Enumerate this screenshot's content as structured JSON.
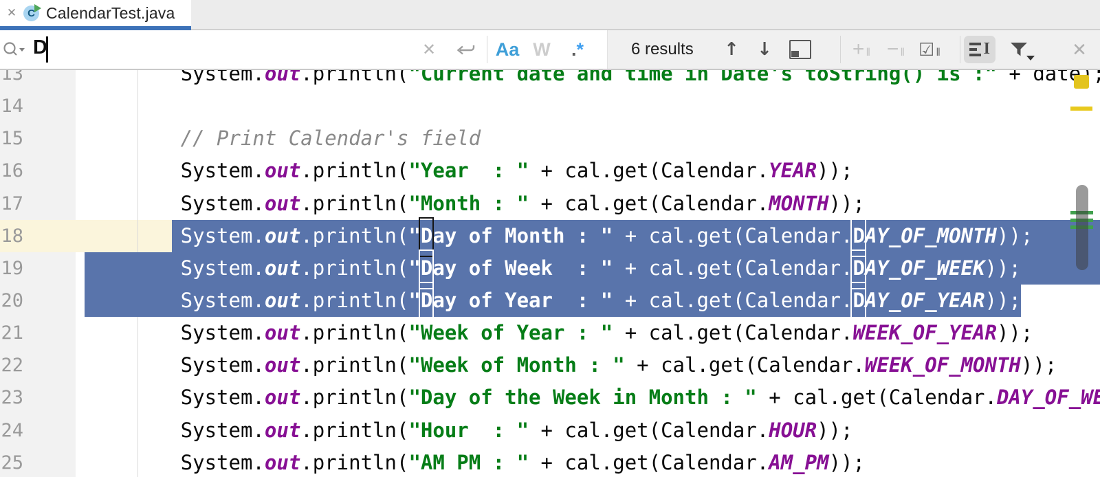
{
  "window": {
    "tab_title": "CalendarTest.java"
  },
  "search_bar": {
    "query": "D",
    "results_count": "6 results",
    "match_case_label": "Aa",
    "words_label": "W",
    "regex_dot": ".",
    "regex_star": "*",
    "accent_color": "#3d72b8",
    "match_case_active_color": "#3f9fd8"
  },
  "icons": {
    "tab_close": "✕",
    "clear": "✕",
    "prev_occurrence": "↑",
    "next_occurrence": "↓",
    "add_occurrence": "+",
    "remove_occurrence": "−",
    "select_all_occurrences": "☑",
    "pillars": "‖",
    "close_search": "✕",
    "java_class_letter": "C"
  },
  "editor": {
    "selection_color": "#5974ab",
    "current_line_color": "#fbf5dc",
    "string_color": "#067d17",
    "field_color": "#871094",
    "comment_color": "#8a8a8a",
    "current_line": 18,
    "selected_lines": [
      18,
      19,
      20
    ],
    "lines": [
      {
        "n": 13,
        "segs": [
          [
            "p",
            "        System."
          ],
          [
            "o",
            "out"
          ],
          [
            "p",
            ".println("
          ],
          [
            "s",
            "\"Current date and time in Date's toString() is :\""
          ],
          [
            "p",
            " + date);"
          ]
        ]
      },
      {
        "n": 14,
        "segs": []
      },
      {
        "n": 15,
        "segs": [
          [
            "c",
            "        // Print Calendar's field"
          ]
        ]
      },
      {
        "n": 16,
        "segs": [
          [
            "p",
            "        System."
          ],
          [
            "o",
            "out"
          ],
          [
            "p",
            ".println("
          ],
          [
            "s",
            "\"Year  : \""
          ],
          [
            "p",
            " + cal.get(Calendar."
          ],
          [
            "o",
            "YEAR"
          ],
          [
            "p",
            "));"
          ]
        ]
      },
      {
        "n": 17,
        "segs": [
          [
            "p",
            "        System."
          ],
          [
            "o",
            "out"
          ],
          [
            "p",
            ".println("
          ],
          [
            "s",
            "\"Month : \""
          ],
          [
            "p",
            " + cal.get(Calendar."
          ],
          [
            "o",
            "MONTH"
          ],
          [
            "p",
            "));"
          ]
        ]
      },
      {
        "n": 18,
        "segs": [
          [
            "p",
            "        System."
          ],
          [
            "o",
            "out"
          ],
          [
            "p",
            ".println("
          ],
          [
            "s",
            "\""
          ],
          [
            "mb",
            "D"
          ],
          [
            "s",
            "ay of Month : \""
          ],
          [
            "p",
            " + cal.get(Calendar."
          ],
          [
            "mw",
            "D"
          ],
          [
            "o",
            "AY_OF_MONTH"
          ],
          [
            "p",
            "));"
          ]
        ]
      },
      {
        "n": 19,
        "segs": [
          [
            "p",
            "        System."
          ],
          [
            "o",
            "out"
          ],
          [
            "p",
            ".println("
          ],
          [
            "s",
            "\""
          ],
          [
            "mw",
            "D"
          ],
          [
            "s",
            "ay of Week  : \""
          ],
          [
            "p",
            " + cal.get(Calendar."
          ],
          [
            "mw",
            "D"
          ],
          [
            "o",
            "AY_OF_WEEK"
          ],
          [
            "p",
            "));"
          ]
        ]
      },
      {
        "n": 20,
        "segs": [
          [
            "p",
            "        System."
          ],
          [
            "o",
            "out"
          ],
          [
            "p",
            ".println("
          ],
          [
            "s",
            "\""
          ],
          [
            "mw",
            "D"
          ],
          [
            "s",
            "ay of Year  : \""
          ],
          [
            "p",
            " + cal.get(Calendar."
          ],
          [
            "mw",
            "D"
          ],
          [
            "o",
            "AY_OF_YEAR"
          ],
          [
            "p",
            "));"
          ]
        ]
      },
      {
        "n": 21,
        "segs": [
          [
            "p",
            "        System."
          ],
          [
            "o",
            "out"
          ],
          [
            "p",
            ".println("
          ],
          [
            "s",
            "\"Week of Year : \""
          ],
          [
            "p",
            " + cal.get(Calendar."
          ],
          [
            "o",
            "WEEK_OF_YEAR"
          ],
          [
            "p",
            "));"
          ]
        ]
      },
      {
        "n": 22,
        "segs": [
          [
            "p",
            "        System."
          ],
          [
            "o",
            "out"
          ],
          [
            "p",
            ".println("
          ],
          [
            "s",
            "\"Week of Month : \""
          ],
          [
            "p",
            " + cal.get(Calendar."
          ],
          [
            "o",
            "WEEK_OF_MONTH"
          ],
          [
            "p",
            "));"
          ]
        ]
      },
      {
        "n": 23,
        "segs": [
          [
            "p",
            "        System."
          ],
          [
            "o",
            "out"
          ],
          [
            "p",
            ".println("
          ],
          [
            "s",
            "\"Day of the Week in Month : \""
          ],
          [
            "p",
            " + cal.get(Calendar."
          ],
          [
            "o",
            "DAY_OF_WEEK_IN_MONTH"
          ],
          [
            "p",
            "));"
          ]
        ]
      },
      {
        "n": 24,
        "segs": [
          [
            "p",
            "        System."
          ],
          [
            "o",
            "out"
          ],
          [
            "p",
            ".println("
          ],
          [
            "s",
            "\"Hour  : \""
          ],
          [
            "p",
            " + cal.get(Calendar."
          ],
          [
            "o",
            "HOUR"
          ],
          [
            "p",
            "));"
          ]
        ]
      },
      {
        "n": 25,
        "segs": [
          [
            "p",
            "        System."
          ],
          [
            "o",
            "out"
          ],
          [
            "p",
            ".println("
          ],
          [
            "s",
            "\"AM PM : \""
          ],
          [
            "p",
            " + cal.get(Calendar."
          ],
          [
            "o",
            "AM_PM"
          ],
          [
            "p",
            "));"
          ]
        ]
      }
    ]
  },
  "scrollbar": {
    "warning_marker_color": "#e3c41f",
    "match_marker_color": "#41a04e"
  }
}
